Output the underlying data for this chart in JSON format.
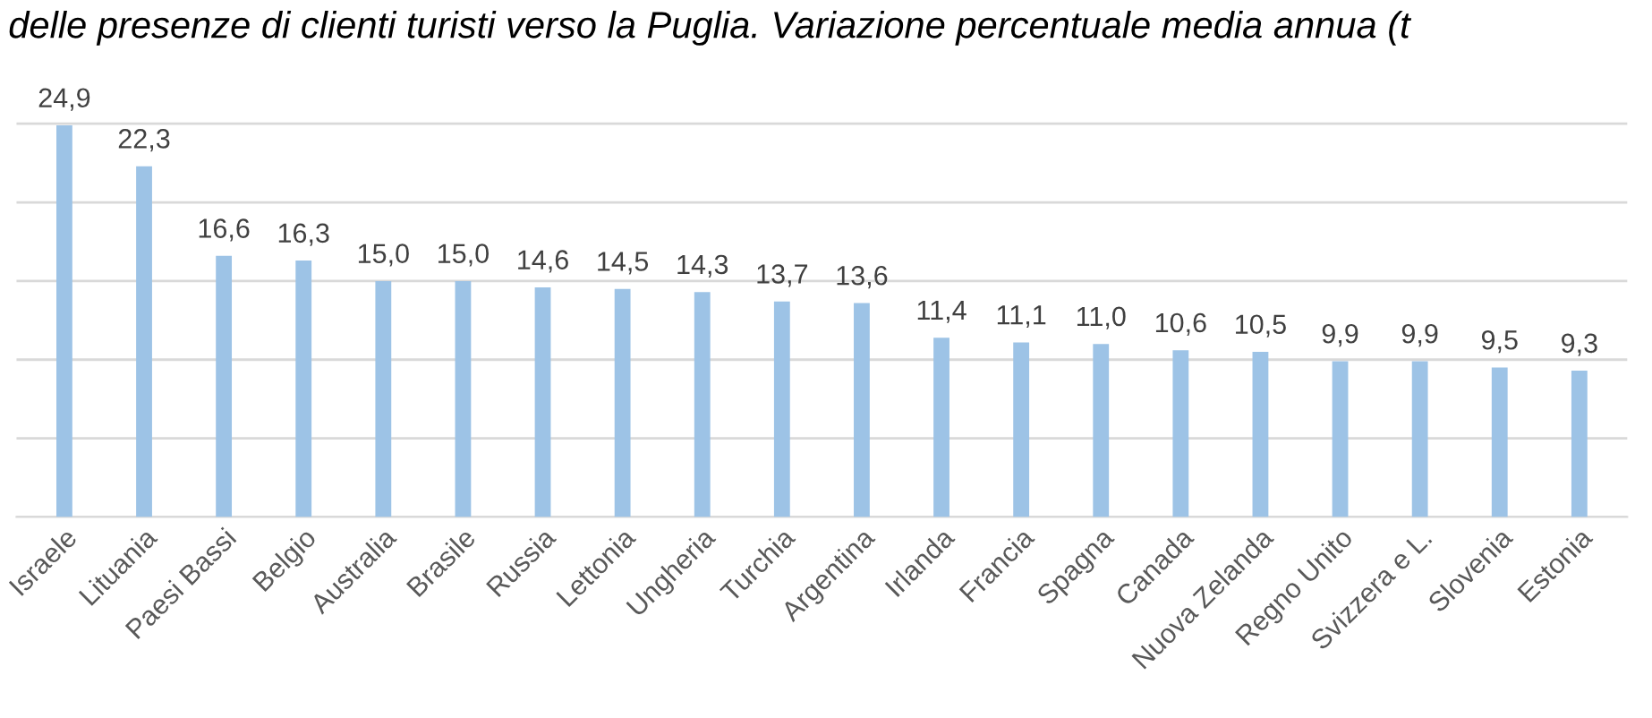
{
  "chart_data": {
    "type": "bar",
    "title": "delle presenze di clienti turisti verso la Puglia. Variazione percentuale media annua (t",
    "categories": [
      "Israele",
      "Lituania",
      "Paesi Bassi",
      "Belgio",
      "Australia",
      "Brasile",
      "Russia",
      "Lettonia",
      "Ungheria",
      "Turchia",
      "Argentina",
      "Irlanda",
      "Francia",
      "Spagna",
      "Canada",
      "Nuova Zelanda",
      "Regno Unito",
      "Svizzera e L.",
      "Slovenia",
      "Estonia"
    ],
    "values": [
      24.9,
      22.3,
      16.6,
      16.3,
      15.0,
      15.0,
      14.6,
      14.5,
      14.3,
      13.7,
      13.6,
      11.4,
      11.1,
      11.0,
      10.6,
      10.5,
      9.9,
      9.9,
      9.5,
      9.3
    ],
    "value_labels": [
      "24,9",
      "22,3",
      "16,6",
      "16,3",
      "15,0",
      "15,0",
      "14,6",
      "14,5",
      "14,3",
      "13,7",
      "13,6",
      "11,4",
      "11,1",
      "11,0",
      "10,6",
      "10,5",
      "9,9",
      "9,9",
      "9,5",
      "9,3"
    ],
    "color": "#9dc3e6",
    "yticks": [
      {
        "value": 0,
        "label": null
      },
      {
        "value": 5,
        "label": null
      },
      {
        "value": 10,
        "label": null
      },
      {
        "value": 15,
        "label": null
      },
      {
        "value": 20,
        "label": null
      },
      {
        "value": 25,
        "label": null
      }
    ],
    "grid": "y"
  }
}
